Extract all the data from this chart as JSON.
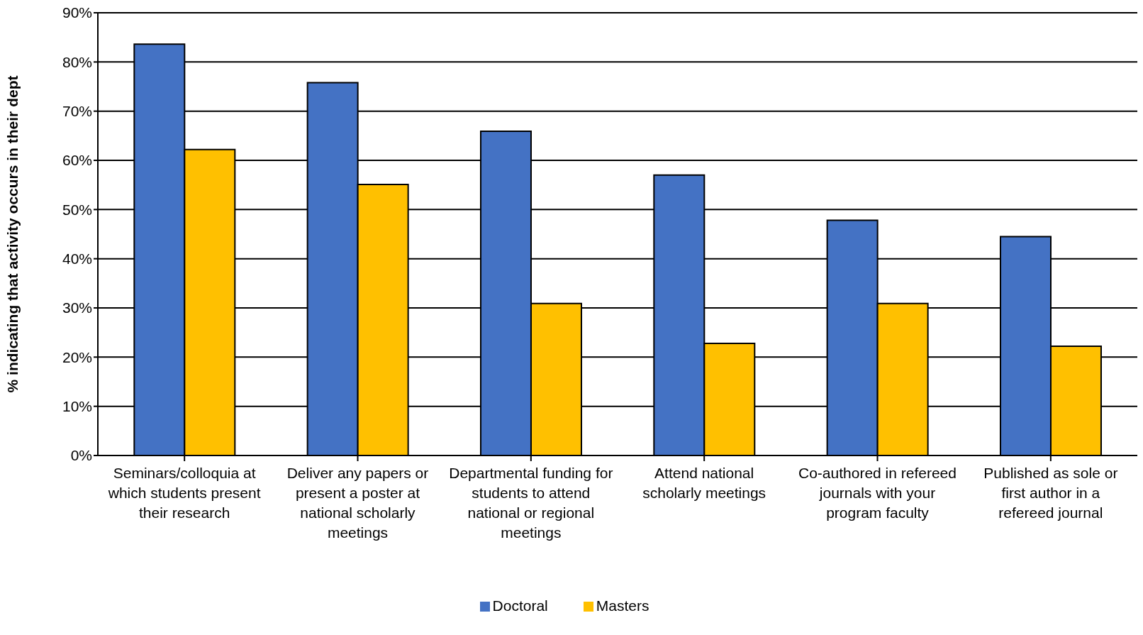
{
  "chart_data": {
    "type": "bar",
    "ylabel": "% indicating that activity occurs in their dept",
    "categories": [
      "Seminars/colloquia at which students present their research",
      "Deliver any papers or present a poster at national scholarly meetings",
      "Departmental funding for students to attend national or regional meetings",
      "Attend national scholarly meetings",
      "Co-authored in refereed journals with your program faculty",
      "Published as sole or first author in a refereed journal"
    ],
    "series": [
      {
        "name": "Doctoral",
        "color": "#4472c4",
        "values": [
          83.6,
          75.8,
          65.9,
          57.0,
          47.8,
          44.5
        ]
      },
      {
        "name": "Masters",
        "color": "#ffc000",
        "values": [
          62.2,
          55.1,
          30.9,
          22.8,
          30.9,
          22.2
        ]
      }
    ],
    "ylim": [
      0,
      90
    ],
    "yticks": [
      {
        "value": 0,
        "label": "0%"
      },
      {
        "value": 10,
        "label": "10%"
      },
      {
        "value": 20,
        "label": "20%"
      },
      {
        "value": 30,
        "label": "30%"
      },
      {
        "value": 40,
        "label": "40%"
      },
      {
        "value": 50,
        "label": "50%"
      },
      {
        "value": 60,
        "label": "60%"
      },
      {
        "value": 70,
        "label": "70%"
      },
      {
        "value": 80,
        "label": "80%"
      },
      {
        "value": 90,
        "label": "90%"
      }
    ],
    "grid": "y",
    "legend": "bottom"
  }
}
